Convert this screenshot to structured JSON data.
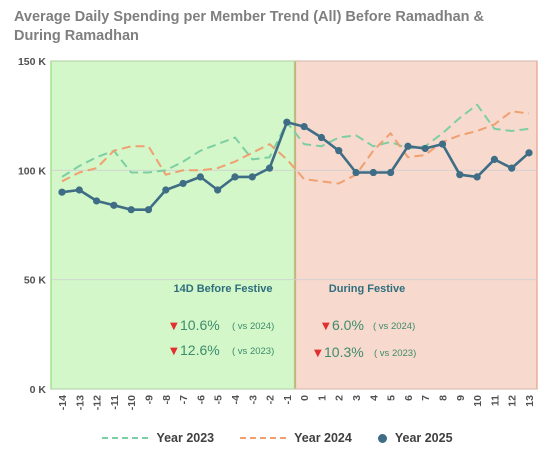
{
  "title": "Average Daily Spending per Member Trend (All) Before Ramadhan & During Ramadhan",
  "legend": [
    {
      "name": "Year 2023",
      "style": "dashed",
      "color": "#7dcfa3"
    },
    {
      "name": "Year 2024",
      "style": "dashed",
      "color": "#f0a070"
    },
    {
      "name": "Year 2025",
      "style": "solid-marker",
      "color": "#3e6d85"
    }
  ],
  "regions": {
    "before": {
      "label": "14D Before Festive",
      "fill": "#d3f7c8",
      "border": "#8fde78",
      "stats": [
        {
          "value": "10.6%",
          "note": "( vs 2024)"
        },
        {
          "value": "12.6%",
          "note": "( vs 2023)"
        }
      ]
    },
    "during": {
      "label": "During Festive",
      "fill": "#f7d9ce",
      "border": "#e89f86",
      "stats": [
        {
          "value": "6.0%",
          "note": "( vs 2024)"
        },
        {
          "value": "10.3%",
          "note": "( vs 2023)"
        }
      ]
    }
  },
  "colors": {
    "down_arrow": "#e03030",
    "stat_text": "#3c8c6c",
    "label_text": "#2f6e7e",
    "grid": "#d0d0d0",
    "axis_text": "#505050"
  },
  "chart_data": {
    "type": "line",
    "x": [
      -14,
      -13,
      -12,
      -11,
      -10,
      -9,
      -8,
      -7,
      -6,
      -5,
      -4,
      -3,
      -2,
      -1,
      0,
      1,
      2,
      3,
      4,
      5,
      6,
      7,
      8,
      9,
      10,
      11,
      12,
      13
    ],
    "y_ticks": [
      "0 K",
      "50 K",
      "100 K",
      "150 K"
    ],
    "ylim": [
      0,
      150
    ],
    "series": [
      {
        "name": "Year 2023",
        "values": [
          97,
          102,
          106,
          109,
          99,
          99,
          100,
          104,
          109,
          112,
          115,
          105,
          106,
          122,
          112,
          111,
          115,
          116,
          111,
          113,
          110,
          111,
          117,
          124,
          130,
          119,
          118,
          119
        ]
      },
      {
        "name": "Year 2024",
        "values": [
          95,
          99,
          101,
          109,
          111,
          111,
          98,
          100,
          100,
          101,
          104,
          108,
          112,
          105,
          96,
          95,
          94,
          98,
          109,
          117,
          106,
          107,
          113,
          116,
          118,
          121,
          127,
          126
        ]
      },
      {
        "name": "Year 2025",
        "values": [
          90,
          91,
          86,
          84,
          82,
          82,
          91,
          94,
          97,
          91,
          97,
          97,
          101,
          122,
          120,
          115,
          109,
          99,
          99,
          99,
          111,
          110,
          112,
          98,
          97,
          105,
          101,
          108
        ]
      }
    ]
  }
}
